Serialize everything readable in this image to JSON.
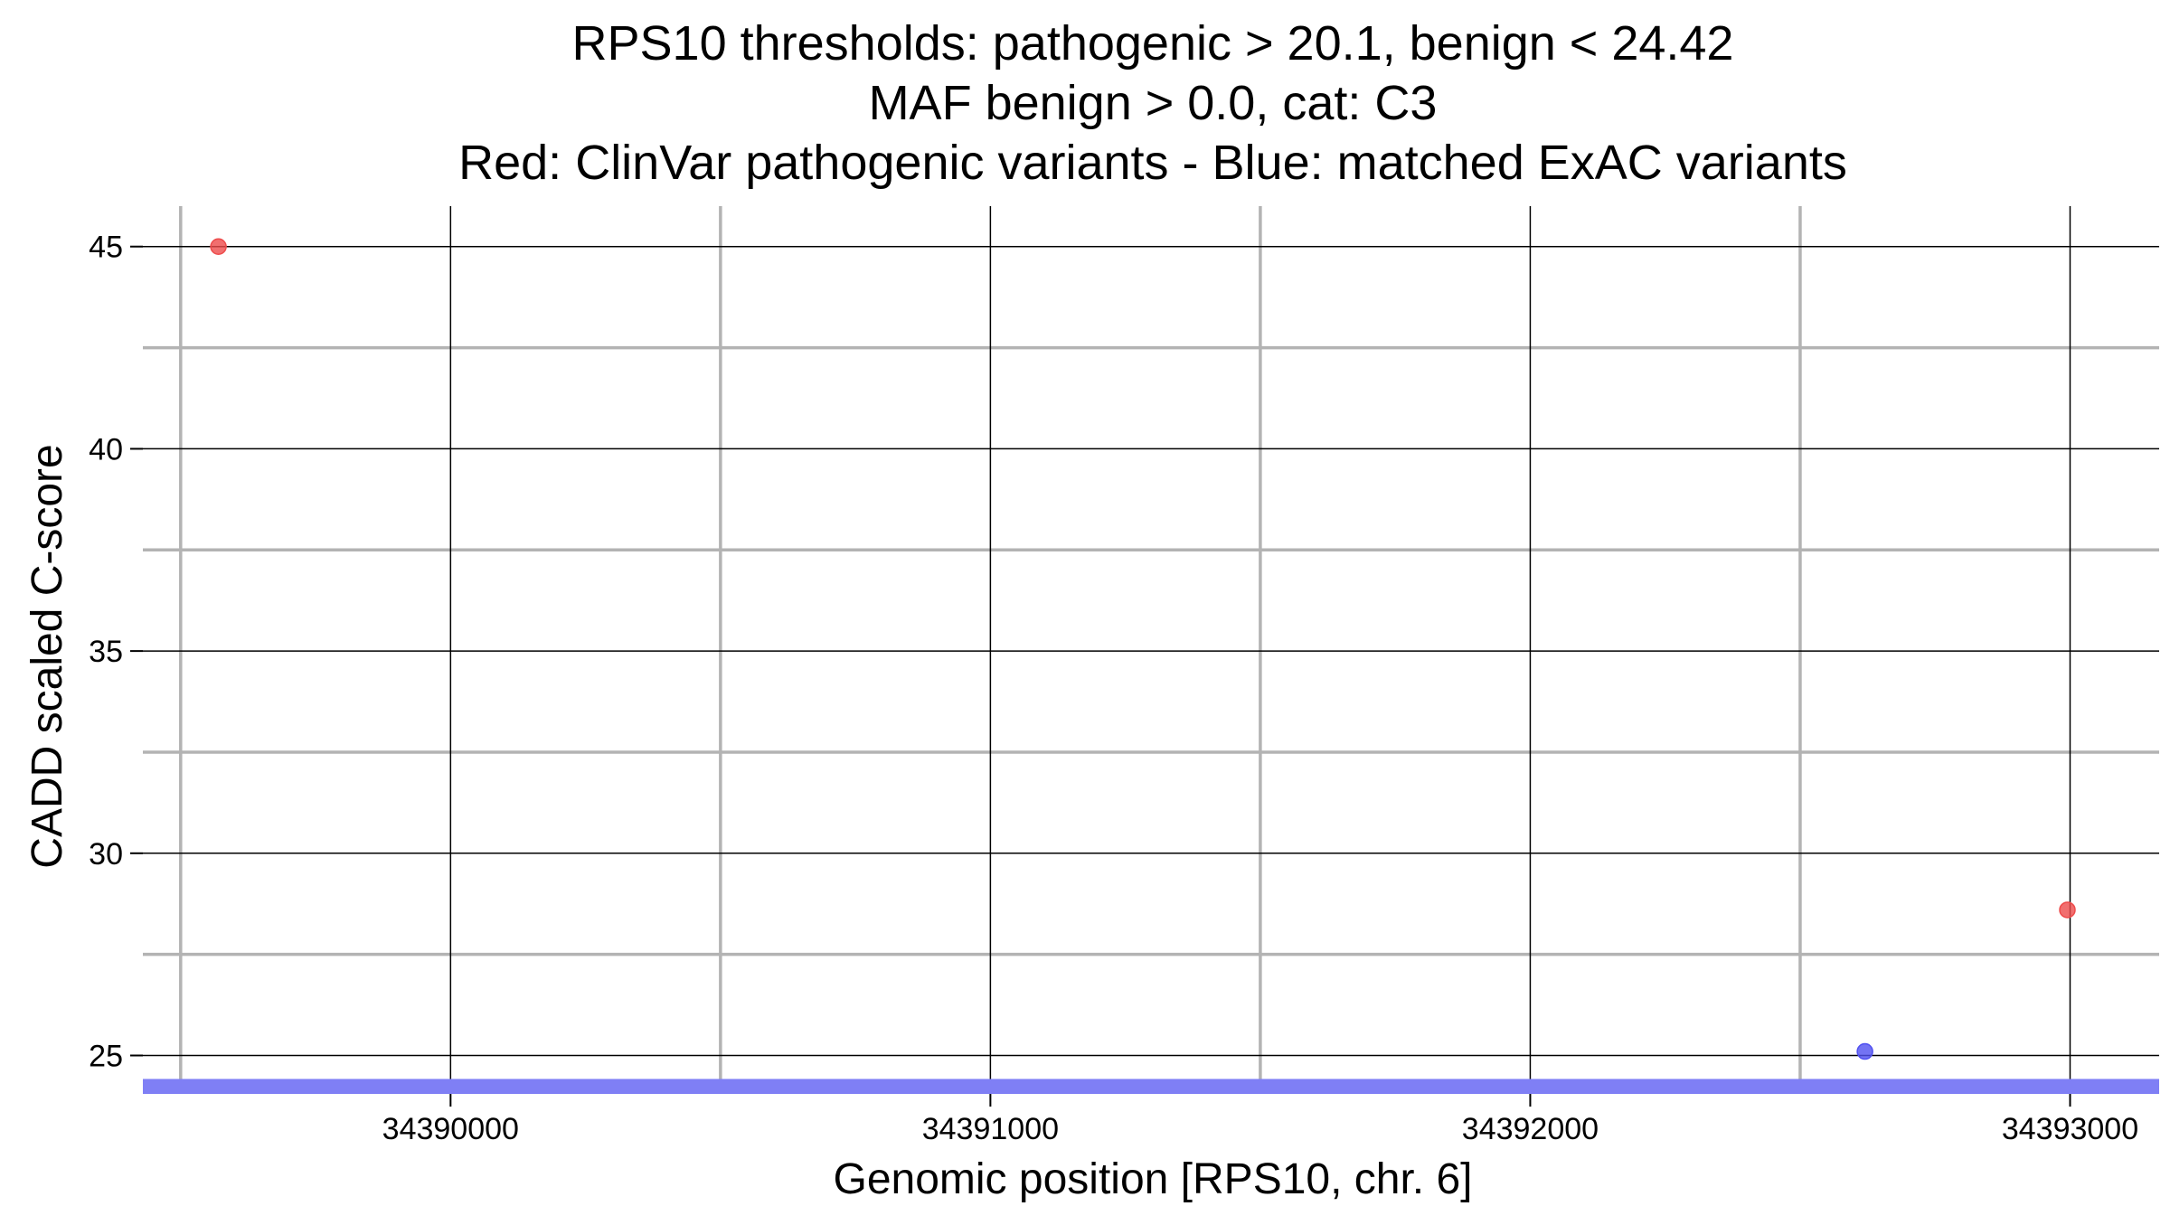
{
  "chart_data": {
    "type": "scatter",
    "title": [
      "RPS10 thresholds: pathogenic > 20.1, benign < 24.42",
      "MAF benign > 0.0, cat: C3",
      "Red: ClinVar pathogenic variants - Blue: matched ExAC variants"
    ],
    "xlabel": "Genomic position [RPS10, chr. 6]",
    "ylabel": "CADD scaled C-score",
    "xlim": [
      34389430,
      34393165
    ],
    "ylim": [
      24.05,
      46.0
    ],
    "x_ticks": [
      34390000,
      34391000,
      34392000,
      34393000
    ],
    "x_tick_labels": [
      "34390000",
      "34391000",
      "34392000",
      "34393000"
    ],
    "x_minor_gridlines": [
      34389500,
      34390500,
      34391500,
      34392500
    ],
    "y_ticks": [
      25,
      30,
      35,
      40,
      45
    ],
    "y_tick_labels": [
      "25",
      "30",
      "35",
      "40",
      "45"
    ],
    "y_minor_gridlines": [
      27.5,
      32.5,
      37.5,
      42.5
    ],
    "grid": true,
    "legend": "none",
    "benign_threshold_band": {
      "from": 24.05,
      "to": 24.42,
      "color": "#7f7ff5"
    },
    "series": [
      {
        "color": "#ee4b4b",
        "points": [
          {
            "x": 34389570,
            "y": 45.0
          },
          {
            "x": 34392995,
            "y": 28.6
          }
        ]
      },
      {
        "color": "#5050f0",
        "points": [
          {
            "x": 34392620,
            "y": 25.1
          }
        ]
      }
    ]
  },
  "colors": {
    "major_grid": "#000000",
    "minor_grid": "#b3b3b3",
    "background": "#ffffff"
  }
}
